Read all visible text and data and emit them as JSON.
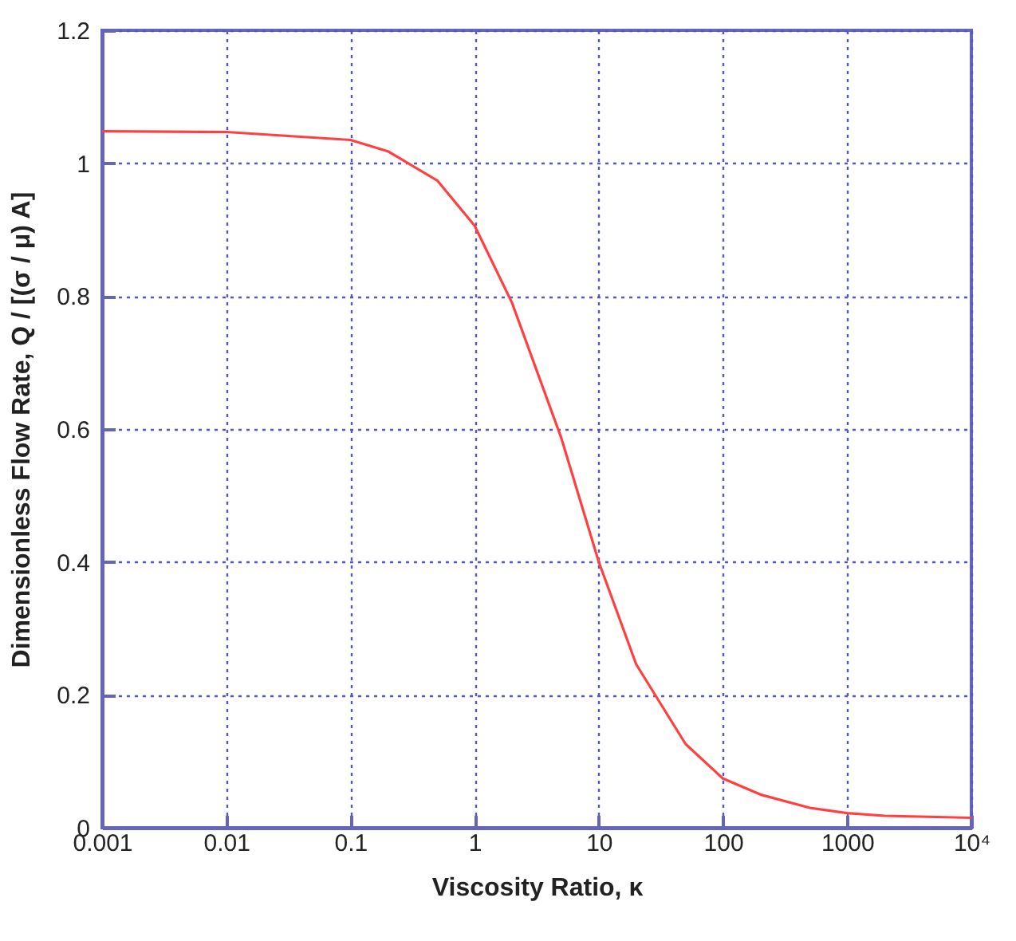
{
  "chart_data": {
    "type": "line",
    "xlabel": "Viscosity Ratio, κ",
    "ylabel": "Dimensionless Flow Rate, Q / [(σ / μ) A]",
    "x": [
      0.001,
      0.01,
      0.1,
      0.2,
      0.5,
      1,
      2,
      5,
      10,
      20,
      50,
      100,
      200,
      500,
      1000,
      2000,
      10000
    ],
    "series": [
      {
        "color": "#ff4040",
        "values": [
          1.048,
          1.047,
          1.035,
          1.018,
          0.974,
          0.906,
          0.79,
          0.586,
          0.4,
          0.246,
          0.126,
          0.074,
          0.05,
          0.03,
          0.022,
          0.018,
          0.015
        ]
      }
    ],
    "log": "x",
    "xlim": [
      0.001,
      10000
    ],
    "ylim": [
      0,
      1.2
    ],
    "xticks": [
      0.001,
      0.01,
      0.1,
      1,
      10,
      100,
      1000,
      {
        "value": 10000,
        "label": "10⁴"
      }
    ],
    "yticks": [
      0,
      0.2,
      0.4,
      0.6,
      0.8,
      1,
      1.2
    ],
    "grid": true,
    "marker": "none",
    "line_style": "solid"
  }
}
